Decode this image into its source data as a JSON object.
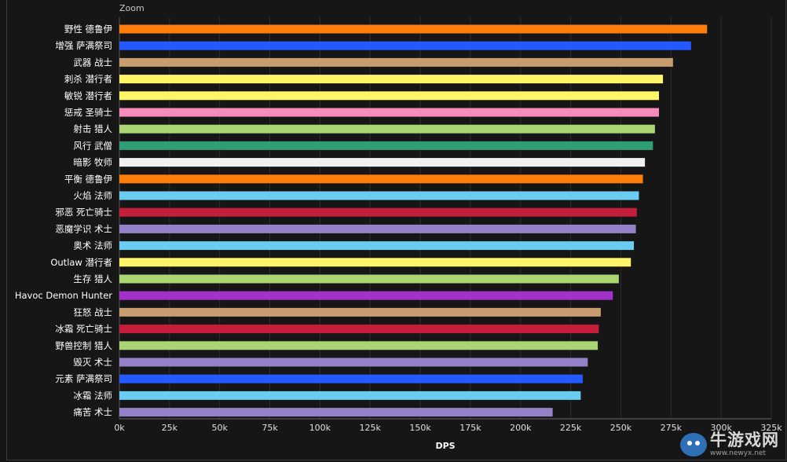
{
  "zoom_label": "Zoom",
  "watermark": {
    "brand": "牛游戏网",
    "url": "www.newyx.net",
    "icon": "cow-mascot-icon"
  },
  "chart_data": {
    "type": "bar",
    "orientation": "horizontal",
    "xlabel": "DPS",
    "xlim": [
      0,
      325000
    ],
    "x_ticks": [
      0,
      25000,
      50000,
      75000,
      100000,
      125000,
      150000,
      175000,
      200000,
      225000,
      250000,
      275000,
      300000,
      325000
    ],
    "x_tick_labels": [
      "0k",
      "25k",
      "50k",
      "75k",
      "100k",
      "125k",
      "150k",
      "175k",
      "200k",
      "225k",
      "250k",
      "275k",
      "300k",
      "325k"
    ],
    "grid": true,
    "categories": [
      "野性 德鲁伊",
      "增强 萨满祭司",
      "武器 战士",
      "刺杀 潜行者",
      "敏锐 潜行者",
      "惩戒 圣骑士",
      "射击 猎人",
      "风行 武僧",
      "暗影 牧师",
      "平衡 德鲁伊",
      "火焰 法师",
      "邪恶 死亡骑士",
      "恶魔学识 术士",
      "奥术 法师",
      "Outlaw 潜行者",
      "生存 猎人",
      "Havoc Demon Hunter",
      "狂怒 战士",
      "冰霜 死亡骑士",
      "野兽控制 猎人",
      "毁灭 术士",
      "元素 萨满祭司",
      "冰霜 法师",
      "痛苦 术士"
    ],
    "values": [
      293000,
      285000,
      276000,
      271000,
      269000,
      269000,
      267000,
      266000,
      262000,
      261000,
      259000,
      258000,
      257500,
      256500,
      255000,
      249000,
      246000,
      240000,
      239000,
      238500,
      233500,
      231000,
      230000,
      216000
    ],
    "colors": [
      "#ff7d0a",
      "#2459ff",
      "#c79c6e",
      "#fff569",
      "#fff569",
      "#f58cba",
      "#abd473",
      "#2f9e74",
      "#f0f0f0",
      "#ff7d0a",
      "#69ccf0",
      "#c41e3a",
      "#9482c9",
      "#69ccf0",
      "#fff569",
      "#abd473",
      "#a330c9",
      "#c79c6e",
      "#c41e3a",
      "#abd473",
      "#9482c9",
      "#2459ff",
      "#69ccf0",
      "#9482c9"
    ]
  }
}
